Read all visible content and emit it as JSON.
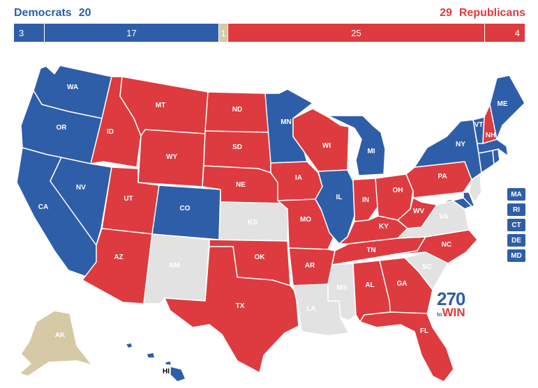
{
  "header": {
    "dem_label": "Democrats",
    "dem_count": "20",
    "rep_label": "Republicans",
    "rep_count": "29"
  },
  "bar": {
    "seg1": "3",
    "seg2": "17",
    "seg3": "1",
    "seg4": "25",
    "seg5": "4"
  },
  "colors": {
    "dem": "#2f5ea8",
    "rep": "#dd3b3f",
    "none": "#e2e2e2",
    "undecided": "#d5c9a6"
  },
  "states": {
    "WA": "WA",
    "OR": "OR",
    "CA": "CA",
    "ID": "ID",
    "NV": "NV",
    "MT": "MT",
    "WY": "WY",
    "UT": "UT",
    "AZ": "AZ",
    "CO": "CO",
    "NM": "NM",
    "ND": "ND",
    "SD": "SD",
    "NE": "NE",
    "KS": "KS",
    "OK": "OK",
    "TX": "TX",
    "MN": "MN",
    "IA": "IA",
    "MO": "MO",
    "AR": "AR",
    "LA": "LA",
    "WI": "WI",
    "IL": "IL",
    "MI": "MI",
    "IN": "IN",
    "OH": "OH",
    "KY": "KY",
    "TN": "TN",
    "MS": "MS",
    "AL": "AL",
    "GA": "GA",
    "FL": "FL",
    "SC": "SC",
    "NC": "NC",
    "VA": "VA",
    "WV": "WV",
    "PA": "PA",
    "NY": "NY",
    "VT": "VT",
    "NH": "NH",
    "ME": "ME",
    "AK": "AK",
    "HI": "HI"
  },
  "small_states": [
    "MA",
    "RI",
    "CT",
    "DE",
    "MD"
  ],
  "logo": {
    "num": "270",
    "to": "to",
    "win": "WIN"
  }
}
